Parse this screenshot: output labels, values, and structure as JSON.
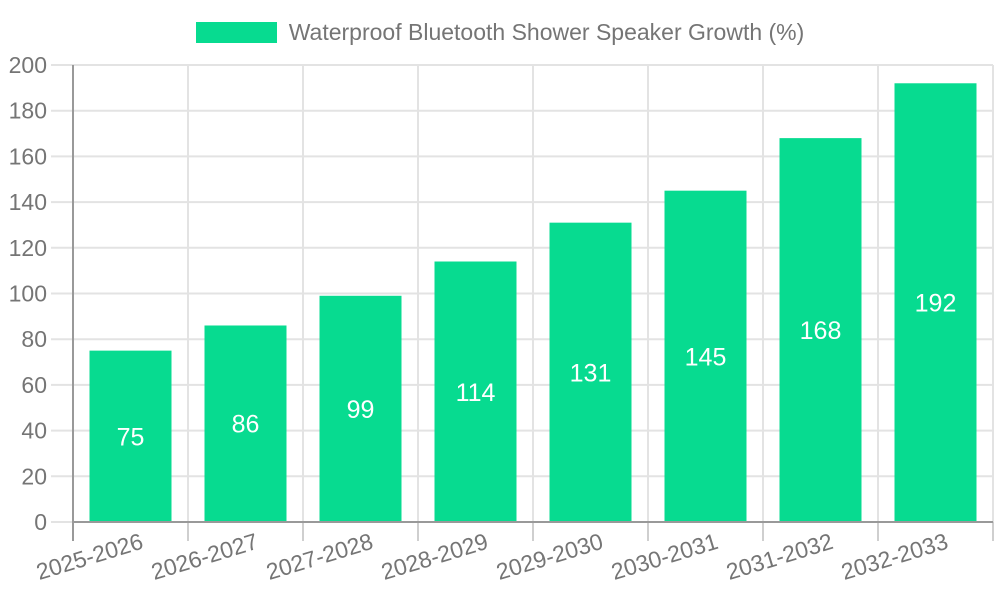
{
  "legend": {
    "label": "Waterproof Bluetooth Shower Speaker Growth (%)",
    "position": "top"
  },
  "colors": {
    "bar": "#07DB90",
    "bar_value_label": "#FFFFFF",
    "axis_line": "#999999",
    "gridline": "#E3E3E3",
    "tick": "#CFCFCF",
    "label_text": "#757575",
    "background": "#FFFFFF"
  },
  "chart_data": {
    "type": "bar",
    "title": "Waterproof Bluetooth Shower Speaker Growth (%)",
    "categories": [
      "2025-2026",
      "2026-2027",
      "2027-2028",
      "2028-2029",
      "2029-2030",
      "2030-2031",
      "2031-2032",
      "2032-2033"
    ],
    "values": [
      75,
      86,
      99,
      114,
      131,
      145,
      168,
      192
    ],
    "xlabel": "",
    "ylabel": "",
    "ylim": [
      0,
      200
    ],
    "yticks": [
      0,
      20,
      40,
      60,
      80,
      100,
      120,
      140,
      160,
      180,
      200
    ],
    "grid": true,
    "legend_position": "top",
    "value_labels": "inside-center",
    "x_tick_rotation_deg": -17
  }
}
